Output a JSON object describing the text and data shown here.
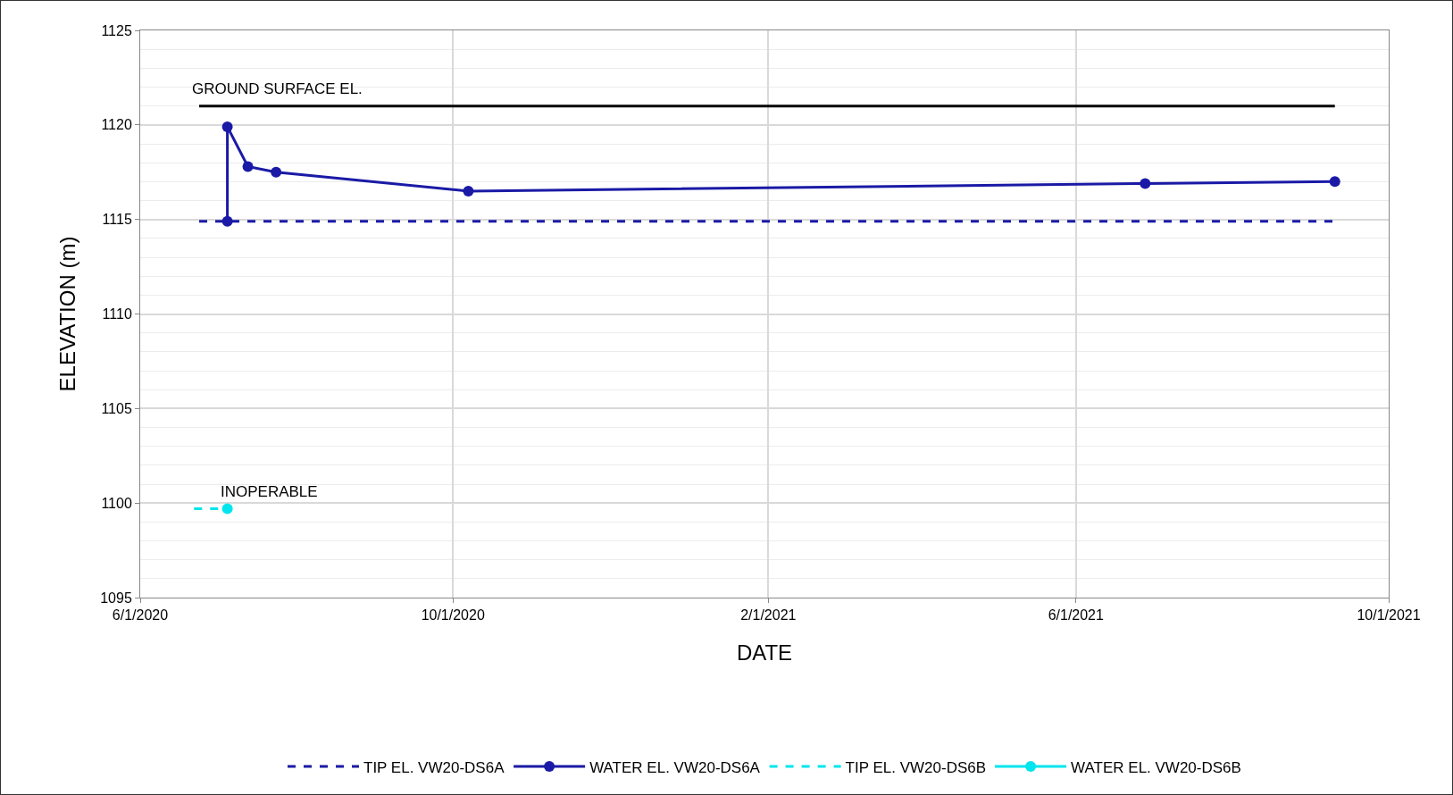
{
  "chart_data": {
    "type": "line",
    "xlabel": "DATE",
    "ylabel": "ELEVATION (m)",
    "xlim": [
      "2020-06-01",
      "2021-10-01"
    ],
    "xticks": [
      {
        "value": "2020-06-01",
        "label": "6/1/2020"
      },
      {
        "value": "2020-10-01",
        "label": "10/1/2020"
      },
      {
        "value": "2021-02-01",
        "label": "2/1/2021"
      },
      {
        "value": "2021-06-01",
        "label": "6/1/2021"
      },
      {
        "value": "2021-10-01",
        "label": "10/1/2021"
      }
    ],
    "ylim": [
      1095,
      1125
    ],
    "yticks": [
      1095,
      1100,
      1105,
      1110,
      1115,
      1120,
      1125
    ],
    "grid": true,
    "legend": "bottom",
    "series": [
      {
        "color": "#000000",
        "line_style": "solid",
        "marker": "none",
        "x": [
          "2020-06-24",
          "2021-09-10"
        ],
        "values": [
          1121.0,
          1121.0
        ]
      },
      {
        "name": "TIP EL. VW20-DS6A",
        "color": "#1a1aa6",
        "line_style": "dashed",
        "marker": "none",
        "x": [
          "2020-06-24",
          "2021-09-10"
        ],
        "values": [
          1114.9,
          1114.9
        ]
      },
      {
        "name": "WATER EL. VW20-DS6A",
        "color": "#1a1aa6",
        "line_style": "solid",
        "marker": "circle",
        "x": [
          "2020-07-05",
          "2020-07-05",
          "2020-07-13",
          "2020-07-24",
          "2020-10-07",
          "2021-06-28",
          "2021-09-10"
        ],
        "values": [
          1114.9,
          1119.9,
          1117.8,
          1117.5,
          1116.5,
          1116.9,
          1117.0
        ]
      },
      {
        "name": "TIP EL. VW20-DS6B",
        "color": "#00e5ee",
        "line_style": "dashed",
        "marker": "none",
        "x": [
          "2020-06-22",
          "2020-07-05"
        ],
        "values": [
          1099.7,
          1099.7
        ]
      },
      {
        "name": "WATER EL. VW20-DS6B",
        "color": "#00e5ee",
        "line_style": "solid",
        "marker": "circle",
        "x": [
          "2020-07-05"
        ],
        "values": [
          1099.7
        ]
      }
    ],
    "annotations": [
      {
        "text": "GROUND SURFACE EL.",
        "x": "2020-06-24",
        "y": 1121.0
      },
      {
        "text": "INOPERABLE",
        "x": "2020-07-05",
        "y": 1099.7
      }
    ]
  }
}
